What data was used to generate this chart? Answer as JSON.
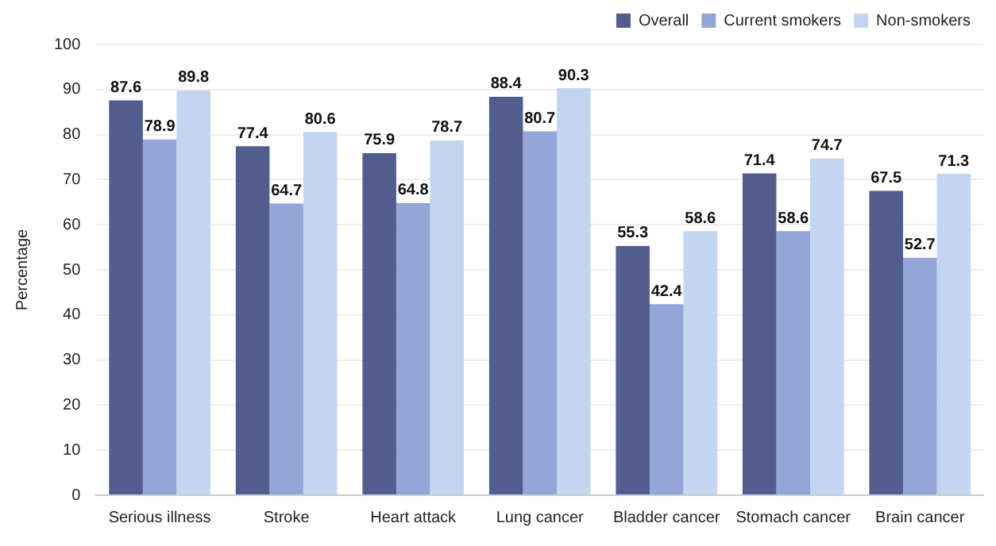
{
  "chart_data": {
    "type": "bar",
    "ylabel": "Percentage",
    "categories": [
      "Serious illness",
      "Stroke",
      "Heart attack",
      "Lung cancer",
      "Bladder cancer",
      "Stomach cancer",
      "Brain cancer"
    ],
    "series": [
      {
        "name": "Overall",
        "color": "#515d8f",
        "values": [
          87.6,
          77.4,
          75.9,
          88.4,
          55.3,
          71.4,
          67.5
        ]
      },
      {
        "name": "Current smokers",
        "color": "#94a5d8",
        "values": [
          78.9,
          64.7,
          64.8,
          80.7,
          42.4,
          58.6,
          52.7
        ]
      },
      {
        "name": "Non-smokers",
        "color": "#c3d6f1",
        "values": [
          89.8,
          80.6,
          78.7,
          90.3,
          58.6,
          74.7,
          71.3
        ]
      }
    ],
    "ylim": [
      0,
      100
    ],
    "yticks": [
      0,
      10,
      20,
      30,
      40,
      50,
      60,
      70,
      80,
      90,
      100
    ],
    "grid": "y",
    "legend": "top right",
    "data_labels": true
  }
}
